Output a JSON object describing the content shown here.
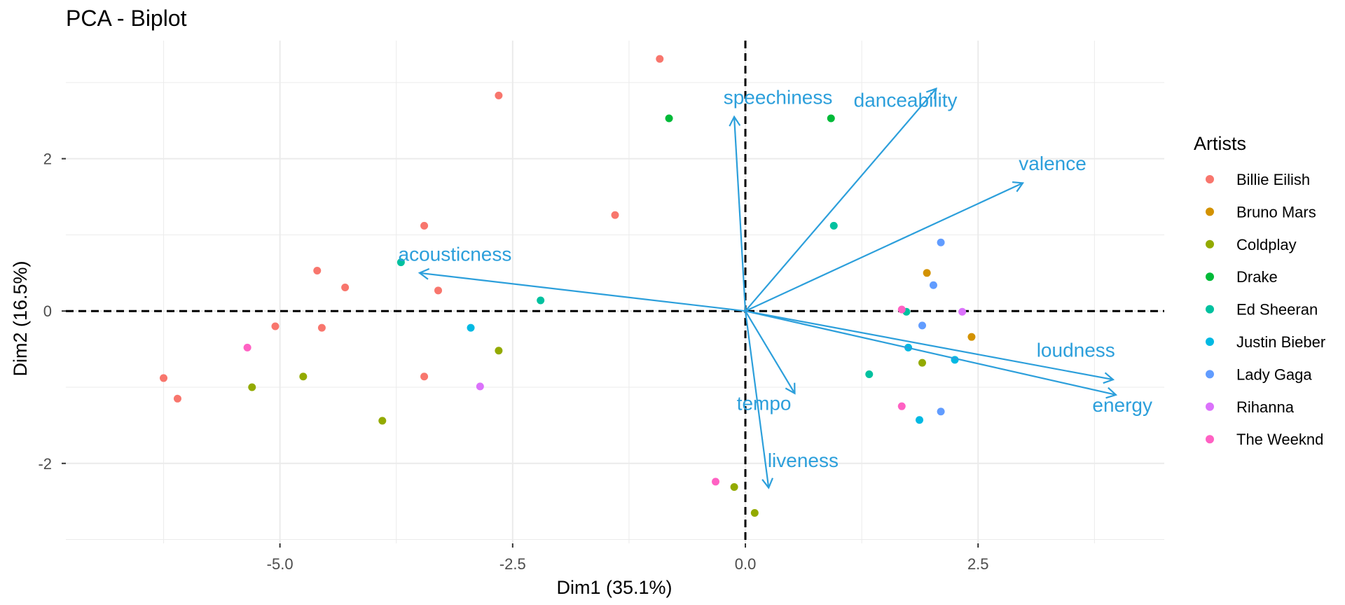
{
  "chart_data": {
    "type": "scatter",
    "title": "PCA - Biplot",
    "xlabel": "Dim1 (35.1%)",
    "ylabel": "Dim2 (16.5%)",
    "xlim": [
      -7.3,
      4.5
    ],
    "ylim": [
      -3.05,
      3.55
    ],
    "x_ticks": [
      -5.0,
      -2.5,
      0.0,
      2.5
    ],
    "x_tick_labels": [
      "-5.0",
      "-2.5",
      "0.0",
      "2.5"
    ],
    "y_ticks": [
      -2,
      0,
      2
    ],
    "y_tick_labels": [
      "-2",
      "0",
      "2"
    ],
    "grid": true,
    "reference_lines": {
      "x": 0,
      "y": 0,
      "style": "dashed"
    },
    "legend": {
      "title": "Artists",
      "position": "right"
    },
    "series": [
      {
        "name": "Billie Eilish",
        "color": "#F8766D",
        "points": [
          [
            -6.25,
            -0.88
          ],
          [
            -6.1,
            -1.15
          ],
          [
            -5.05,
            -0.2
          ],
          [
            -4.6,
            0.53
          ],
          [
            -4.55,
            -0.22
          ],
          [
            -4.3,
            0.31
          ],
          [
            -3.45,
            1.12
          ],
          [
            -3.45,
            -0.86
          ],
          [
            -3.3,
            0.27
          ],
          [
            -2.65,
            2.83
          ],
          [
            -1.4,
            1.26
          ],
          [
            -0.92,
            3.31
          ]
        ]
      },
      {
        "name": "Bruno Mars",
        "color": "#D39200",
        "points": [
          [
            1.95,
            0.5
          ],
          [
            2.43,
            -0.34
          ]
        ]
      },
      {
        "name": "Coldplay",
        "color": "#93AA00",
        "points": [
          [
            -5.3,
            -1.0
          ],
          [
            -4.75,
            -0.86
          ],
          [
            -3.9,
            -1.44
          ],
          [
            -2.65,
            -0.52
          ],
          [
            -0.12,
            -2.31
          ],
          [
            0.1,
            -2.65
          ],
          [
            1.9,
            -0.68
          ]
        ]
      },
      {
        "name": "Drake",
        "color": "#00BA38",
        "points": [
          [
            -0.82,
            2.53
          ],
          [
            0.92,
            2.53
          ]
        ]
      },
      {
        "name": "Ed Sheeran",
        "color": "#00C19F",
        "points": [
          [
            -3.7,
            0.64
          ],
          [
            -2.2,
            0.14
          ],
          [
            0.95,
            1.12
          ],
          [
            1.33,
            -0.83
          ],
          [
            1.73,
            -0.01
          ]
        ]
      },
      {
        "name": "Justin Bieber",
        "color": "#00B9E3",
        "points": [
          [
            -2.95,
            -0.22
          ],
          [
            1.75,
            -0.48
          ],
          [
            1.87,
            -1.43
          ],
          [
            2.25,
            -0.64
          ]
        ]
      },
      {
        "name": "Lady Gaga",
        "color": "#619CFF",
        "points": [
          [
            2.1,
            0.9
          ],
          [
            2.02,
            0.34
          ],
          [
            1.9,
            -0.19
          ],
          [
            2.1,
            -1.32
          ]
        ]
      },
      {
        "name": "Rihanna",
        "color": "#DB72FB",
        "points": [
          [
            -2.85,
            -0.99
          ],
          [
            2.33,
            -0.01
          ]
        ]
      },
      {
        "name": "The Weeknd",
        "color": "#FF61C3",
        "points": [
          [
            -5.35,
            -0.48
          ],
          [
            -0.32,
            -2.24
          ],
          [
            1.68,
            0.02
          ],
          [
            1.68,
            -1.25
          ]
        ]
      }
    ],
    "arrows": {
      "color": "#2C9FDB",
      "items": [
        {
          "name": "speechiness",
          "x": -0.12,
          "y": 2.55
        },
        {
          "name": "danceability",
          "x": 2.05,
          "y": 2.92
        },
        {
          "name": "valence",
          "x": 2.98,
          "y": 1.68
        },
        {
          "name": "acousticness",
          "x": -3.5,
          "y": 0.5
        },
        {
          "name": "loudness",
          "x": 3.95,
          "y": -0.9
        },
        {
          "name": "energy",
          "x": 3.98,
          "y": -1.1
        },
        {
          "name": "tempo",
          "x": 0.53,
          "y": -1.08
        },
        {
          "name": "liveness",
          "x": 0.25,
          "y": -2.32
        }
      ]
    }
  }
}
